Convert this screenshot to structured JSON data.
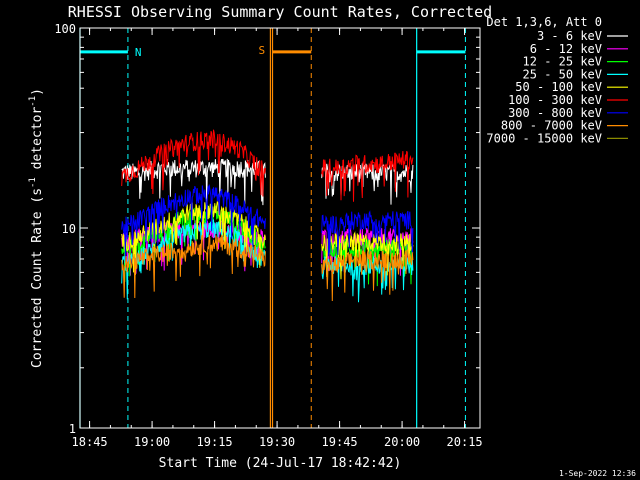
{
  "chart_data": {
    "type": "line",
    "title": "RHESSI Observing Summary Count Rates, Corrected",
    "xlabel": "Start Time (24-Jul-17 18:42:42)",
    "ylabel_prefix": "Corrected Count Rate (s",
    "ylabel_sup1": "-1",
    "ylabel_mid": " detector",
    "ylabel_sup2": "-1",
    "ylabel_suffix": ")",
    "y_scale": "log",
    "x_unit": "minutes since 18:42:42",
    "xlim": [
      0,
      96
    ],
    "ylim": [
      1,
      100
    ],
    "x_ticks": [
      {
        "label": "18:45",
        "x": 2.3
      },
      {
        "label": "19:00",
        "x": 17.3
      },
      {
        "label": "19:15",
        "x": 32.3
      },
      {
        "label": "19:30",
        "x": 47.3
      },
      {
        "label": "19:45",
        "x": 62.3
      },
      {
        "label": "20:00",
        "x": 77.3
      },
      {
        "label": "20:15",
        "x": 92.3
      }
    ],
    "y_ticks": [
      {
        "label": "1",
        "y": 1
      },
      {
        "label": "10",
        "y": 10
      },
      {
        "label": "100",
        "y": 100
      }
    ],
    "legend_title": "Det 1,3,6, Att 0",
    "legend_position": "outside-right",
    "series": [
      {
        "name": "3 - 6 keV",
        "color": "#ffffff",
        "x": [
          10,
          14,
          20,
          26,
          32,
          38,
          42,
          44.5,
          58,
          62,
          66,
          72,
          78,
          80
        ],
        "y": [
          19,
          19,
          20,
          20,
          20,
          20,
          20,
          19,
          19,
          19,
          19,
          19,
          19,
          19
        ]
      },
      {
        "name": "6 - 12 keV",
        "color": "#ff00ff",
        "x": [
          10,
          14,
          20,
          26,
          32,
          38,
          42,
          44.5,
          58,
          62,
          66,
          72,
          78,
          80
        ],
        "y": [
          9,
          9,
          9.5,
          10,
          10,
          9.5,
          9,
          9,
          9,
          9,
          9,
          9,
          9,
          9
        ]
      },
      {
        "name": "12 - 25 keV",
        "color": "#00ff00",
        "x": [
          10,
          14,
          20,
          26,
          32,
          38,
          42,
          44.5,
          58,
          62,
          66,
          72,
          78,
          80
        ],
        "y": [
          8,
          8.5,
          10,
          11.5,
          12,
          10.5,
          9,
          8,
          7.5,
          8,
          8,
          8,
          8,
          8
        ]
      },
      {
        "name": "25 - 50 keV",
        "color": "#00ffff",
        "x": [
          10,
          14,
          20,
          26,
          32,
          38,
          42,
          44.5,
          58,
          62,
          66,
          72,
          78,
          80
        ],
        "y": [
          6.5,
          7,
          8.5,
          9.5,
          10,
          9,
          7.5,
          7,
          6.5,
          6.5,
          6.5,
          6.5,
          6.5,
          6.5
        ]
      },
      {
        "name": "50 - 100 keV",
        "color": "#ffff00",
        "x": [
          10,
          14,
          20,
          26,
          32,
          38,
          42,
          44.5,
          58,
          62,
          66,
          72,
          78,
          80
        ],
        "y": [
          8.5,
          9,
          10.5,
          12,
          12.5,
          11,
          9.5,
          8.5,
          8.5,
          8.5,
          8.5,
          8.5,
          8.5,
          8.5
        ]
      },
      {
        "name": "100 - 300 keV",
        "color": "#ff0000",
        "x": [
          10,
          14,
          20,
          26,
          32,
          38,
          42,
          44.5,
          58,
          62,
          66,
          72,
          78,
          80
        ],
        "y": [
          18,
          20,
          24,
          27,
          28,
          25,
          21,
          19,
          20,
          20,
          21,
          21,
          22,
          22
        ]
      },
      {
        "name": "300 - 800 keV",
        "color": "#0000ff",
        "x": [
          10,
          14,
          20,
          26,
          32,
          38,
          42,
          44.5,
          58,
          62,
          66,
          72,
          78,
          80
        ],
        "y": [
          10,
          11,
          13,
          14.5,
          15,
          13,
          11.5,
          10.5,
          10.5,
          10.5,
          11,
          11,
          11,
          11
        ]
      },
      {
        "name": "800 - 7000 keV",
        "color": "#ff8c00",
        "x": [
          10,
          14,
          20,
          26,
          32,
          38,
          42,
          44.5,
          58,
          62,
          66,
          72,
          78,
          80
        ],
        "y": [
          6.5,
          7,
          7.5,
          8,
          8.5,
          8,
          7.5,
          7,
          6.5,
          6.5,
          7,
          7,
          7,
          7
        ]
      },
      {
        "name": "7000 - 15000 keV",
        "color": "#8b8b00",
        "x": [],
        "y": []
      }
    ],
    "gaps": [
      [
        44.6,
        57.9
      ]
    ],
    "night_flag": {
      "label": "N",
      "color": "#00ffff",
      "intervals": [
        [
          0,
          11.5
        ],
        [
          80.8,
          92.5
        ]
      ],
      "solid_lines": [
        0,
        80.8
      ],
      "dashed_lines": [
        11.5,
        92.5
      ],
      "y": 76
    },
    "saa_flag": {
      "label": "S",
      "color": "#ff8c00",
      "intervals": [
        [
          46.2,
          55.5
        ]
      ],
      "solid_lines": [
        45.7,
        46.2
      ],
      "dashed_lines": [
        55.5
      ],
      "y": 76
    },
    "timestamp": "1-Sep-2022 12:36"
  }
}
